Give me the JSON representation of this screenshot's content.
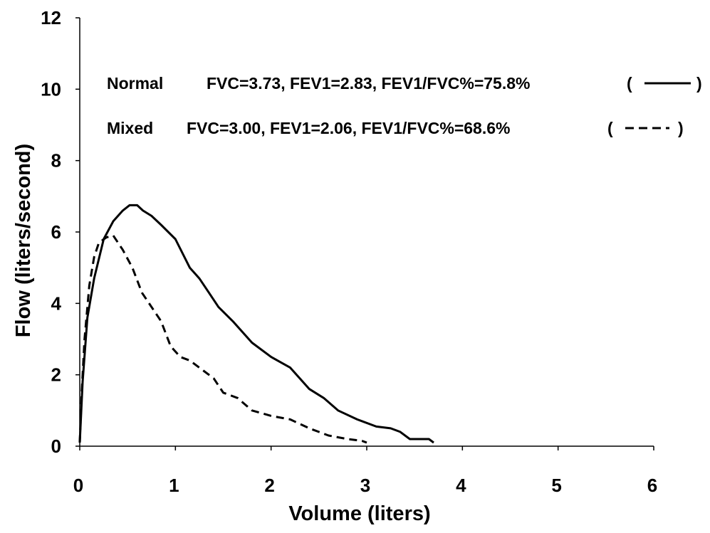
{
  "chart_data": {
    "type": "line",
    "title": "",
    "xlabel": "Volume (liters)",
    "ylabel": "Flow (liters/second)",
    "xlim": [
      0,
      6
    ],
    "ylim": [
      0,
      12
    ],
    "x_ticks": [
      "0",
      "1",
      "2",
      "3",
      "4",
      "5",
      "6"
    ],
    "y_ticks": [
      "0",
      "2",
      "4",
      "6",
      "8",
      "10",
      "12"
    ],
    "grid": false,
    "legend_placement": "top",
    "series": [
      {
        "name": "Normal",
        "label": "Normal",
        "stats": "FVC=3.73, FEV1=2.83, FEV1/FVC%=75.8%",
        "style": "solid",
        "color": "#000000",
        "points": [
          [
            0,
            0.1
          ],
          [
            0.03,
            1.8
          ],
          [
            0.08,
            3.6
          ],
          [
            0.15,
            4.7
          ],
          [
            0.25,
            5.8
          ],
          [
            0.35,
            6.3
          ],
          [
            0.45,
            6.6
          ],
          [
            0.52,
            6.75
          ],
          [
            0.6,
            6.75
          ],
          [
            0.66,
            6.6
          ],
          [
            0.75,
            6.45
          ],
          [
            0.85,
            6.2
          ],
          [
            1.0,
            5.8
          ],
          [
            1.15,
            5.0
          ],
          [
            1.25,
            4.7
          ],
          [
            1.35,
            4.3
          ],
          [
            1.45,
            3.9
          ],
          [
            1.6,
            3.5
          ],
          [
            1.8,
            2.9
          ],
          [
            2.0,
            2.5
          ],
          [
            2.2,
            2.2
          ],
          [
            2.4,
            1.6
          ],
          [
            2.55,
            1.35
          ],
          [
            2.7,
            1.0
          ],
          [
            2.9,
            0.75
          ],
          [
            3.1,
            0.55
          ],
          [
            3.25,
            0.5
          ],
          [
            3.35,
            0.4
          ],
          [
            3.45,
            0.2
          ],
          [
            3.6,
            0.2
          ],
          [
            3.65,
            0.2
          ],
          [
            3.7,
            0.1
          ]
        ]
      },
      {
        "name": "Mixed",
        "label": "Mixed",
        "stats": "FVC=3.00, FEV1=2.06, FEV1/FVC%=68.6%",
        "style": "dashed",
        "color": "#000000",
        "points": [
          [
            0,
            0.1
          ],
          [
            0.02,
            1.5
          ],
          [
            0.05,
            3.0
          ],
          [
            0.1,
            4.5
          ],
          [
            0.15,
            5.3
          ],
          [
            0.2,
            5.7
          ],
          [
            0.28,
            5.85
          ],
          [
            0.35,
            5.9
          ],
          [
            0.45,
            5.5
          ],
          [
            0.55,
            5.0
          ],
          [
            0.65,
            4.3
          ],
          [
            0.75,
            3.9
          ],
          [
            0.85,
            3.5
          ],
          [
            0.95,
            2.8
          ],
          [
            1.05,
            2.5
          ],
          [
            1.15,
            2.4
          ],
          [
            1.25,
            2.2
          ],
          [
            1.4,
            1.9
          ],
          [
            1.5,
            1.5
          ],
          [
            1.65,
            1.35
          ],
          [
            1.8,
            1.0
          ],
          [
            2.0,
            0.85
          ],
          [
            2.2,
            0.75
          ],
          [
            2.4,
            0.5
          ],
          [
            2.6,
            0.3
          ],
          [
            2.8,
            0.2
          ],
          [
            2.95,
            0.15
          ],
          [
            3.0,
            0.1
          ]
        ]
      }
    ]
  }
}
